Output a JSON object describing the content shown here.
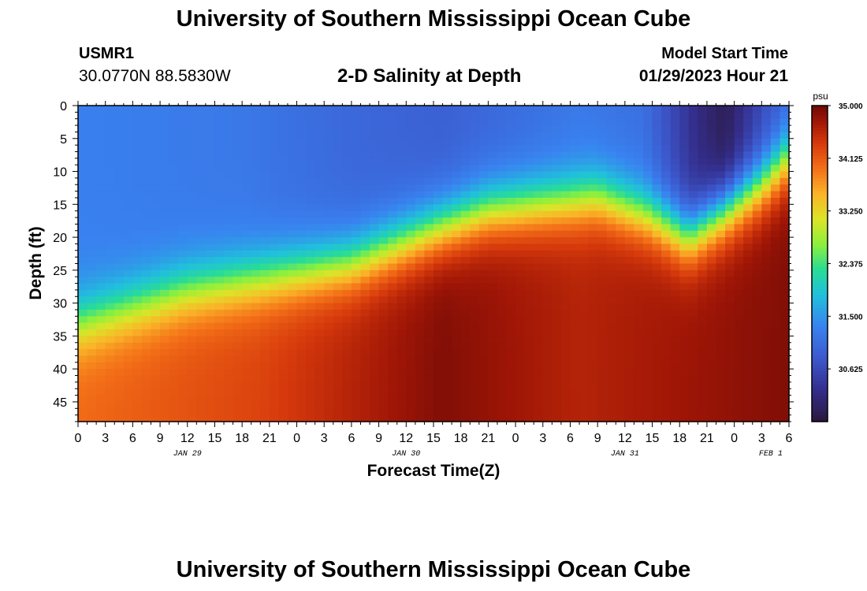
{
  "header": {
    "title": "University of Southern Mississippi Ocean Cube",
    "station": "USMR1",
    "coordinates": "30.0770N  88.5830W",
    "subtitle": "2-D Salinity at Depth",
    "model_start_label": "Model Start Time",
    "model_start_time": "01/29/2023 Hour 21"
  },
  "footer": {
    "title": "University of Southern Mississippi Ocean Cube"
  },
  "chart_data": {
    "type": "heatmap",
    "title": "2-D Salinity at Depth",
    "xlabel": "Forecast Time(Z)",
    "ylabel": "Depth (ft)",
    "x_hours_start": 0,
    "x_hours_end": 78,
    "x_tick_labels": [
      "0",
      "3",
      "6",
      "9",
      "12",
      "15",
      "18",
      "21",
      "0",
      "3",
      "6",
      "9",
      "12",
      "15",
      "18",
      "21",
      "0",
      "3",
      "6",
      "9",
      "12",
      "15",
      "18",
      "21",
      "0",
      "3",
      "6"
    ],
    "date_labels": [
      {
        "label": "JAN 29",
        "hour": 12
      },
      {
        "label": "JAN 30",
        "hour": 36
      },
      {
        "label": "JAN 31",
        "hour": 60
      },
      {
        "label": "FEB 1",
        "hour": 76
      }
    ],
    "y_ticks": [
      0,
      5,
      10,
      15,
      20,
      25,
      30,
      35,
      40,
      45
    ],
    "ylim": [
      0,
      48
    ],
    "colorbar": {
      "unit": "psu",
      "min": 29.75,
      "max": 35.0,
      "tick_labels": [
        "35.000",
        "34.125",
        "33.250",
        "32.375",
        "31.500",
        "30.625"
      ],
      "tick_values": [
        35.0,
        34.125,
        33.25,
        32.375,
        31.5,
        30.625
      ]
    },
    "halocline_depth_ft": [
      {
        "hour": 0,
        "depth": 33
      },
      {
        "hour": 12,
        "depth": 28
      },
      {
        "hour": 21,
        "depth": 26
      },
      {
        "hour": 30,
        "depth": 24
      },
      {
        "hour": 39,
        "depth": 19
      },
      {
        "hour": 45,
        "depth": 16
      },
      {
        "hour": 51,
        "depth": 15
      },
      {
        "hour": 57,
        "depth": 14
      },
      {
        "hour": 63,
        "depth": 17
      },
      {
        "hour": 67,
        "depth": 20
      },
      {
        "hour": 71,
        "depth": 16
      },
      {
        "hour": 75,
        "depth": 12
      },
      {
        "hour": 78,
        "depth": 8
      }
    ],
    "surface_salinity_psu": [
      {
        "hour": 0,
        "value": 31.3
      },
      {
        "hour": 18,
        "value": 31.2
      },
      {
        "hour": 30,
        "value": 31.0
      },
      {
        "hour": 40,
        "value": 30.9
      },
      {
        "hour": 55,
        "value": 31.2
      },
      {
        "hour": 62,
        "value": 31.1
      },
      {
        "hour": 68,
        "value": 30.2
      },
      {
        "hour": 71,
        "value": 29.9
      },
      {
        "hour": 75,
        "value": 30.6
      },
      {
        "hour": 78,
        "value": 31.0
      }
    ],
    "bottom_salinity_psu": [
      {
        "hour": 0,
        "value": 34.0
      },
      {
        "hour": 20,
        "value": 34.3
      },
      {
        "hour": 40,
        "value": 34.9
      },
      {
        "hour": 55,
        "value": 34.6
      },
      {
        "hour": 78,
        "value": 34.9
      }
    ]
  }
}
